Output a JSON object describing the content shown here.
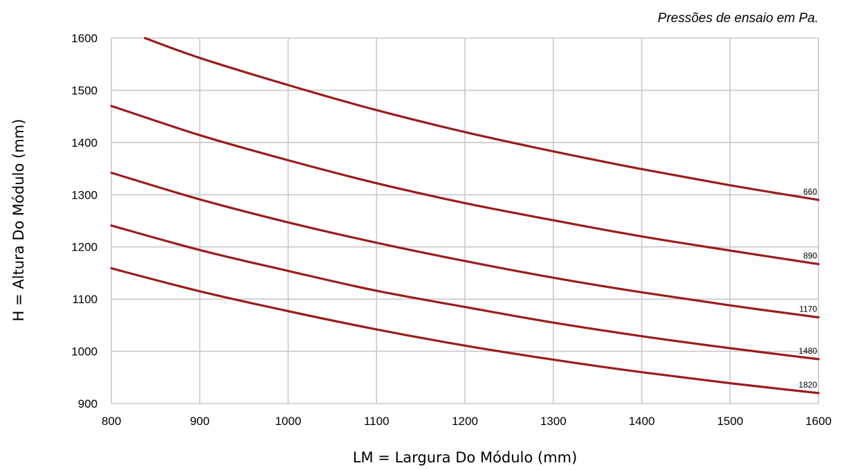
{
  "chart_data": {
    "type": "line",
    "title": "",
    "annotation": "Pressões de ensaio em Pa.",
    "xlabel": "LM = Largura Do Módulo (mm)",
    "ylabel": "H = Altura Do Módulo (mm)",
    "xlim": [
      800,
      1600
    ],
    "ylim": [
      900,
      1600
    ],
    "xticks": [
      800,
      900,
      1000,
      1100,
      1200,
      1300,
      1400,
      1500,
      1600
    ],
    "yticks": [
      900,
      1000,
      1100,
      1200,
      1300,
      1400,
      1500,
      1600
    ],
    "grid": true,
    "legend": "none",
    "line_color": "#9B1C1C",
    "grid_color": "#C8C8C8",
    "series": [
      {
        "name": "660",
        "x": [
          838,
          900,
          1000,
          1100,
          1200,
          1300,
          1400,
          1500,
          1600
        ],
        "y": [
          1600,
          1562,
          1510,
          1462,
          1420,
          1383,
          1349,
          1318,
          1290
        ]
      },
      {
        "name": "890",
        "x": [
          800,
          900,
          1000,
          1100,
          1200,
          1300,
          1400,
          1500,
          1600
        ],
        "y": [
          1470,
          1414,
          1366,
          1322,
          1284,
          1251,
          1220,
          1193,
          1167
        ]
      },
      {
        "name": "1170",
        "x": [
          800,
          900,
          1000,
          1100,
          1200,
          1300,
          1400,
          1500,
          1600
        ],
        "y": [
          1342,
          1291,
          1247,
          1208,
          1173,
          1141,
          1113,
          1088,
          1065
        ]
      },
      {
        "name": "1480",
        "x": [
          800,
          900,
          1000,
          1100,
          1200,
          1300,
          1400,
          1500,
          1600
        ],
        "y": [
          1241,
          1194,
          1154,
          1116,
          1085,
          1055,
          1029,
          1006,
          985
        ]
      },
      {
        "name": "1820",
        "x": [
          800,
          900,
          1000,
          1100,
          1200,
          1300,
          1400,
          1500,
          1600
        ],
        "y": [
          1159,
          1115,
          1077,
          1042,
          1011,
          984,
          960,
          939,
          920
        ]
      }
    ]
  }
}
